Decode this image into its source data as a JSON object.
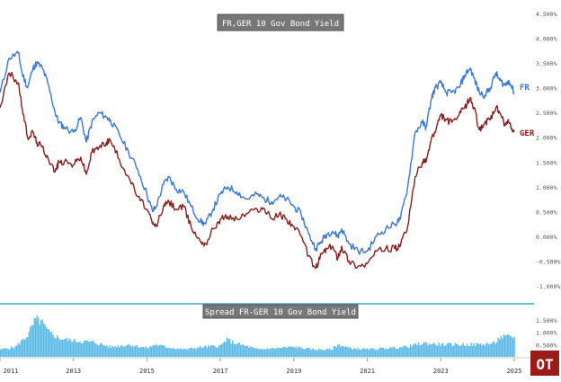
{
  "chart_data": [
    {
      "type": "line",
      "title": "FR,GER 10 Gov Bond Yield",
      "ylim": [
        -1.0,
        4.5
      ],
      "yticks": [
        "4.500%",
        "4.000%",
        "3.500%",
        "3.000%",
        "2.500%",
        "2.000%",
        "1.500%",
        "1.000%",
        "0.500%",
        "0.000%",
        "-0.500%",
        "-1.000%"
      ],
      "ytick_values": [
        4.5,
        4.0,
        3.5,
        3.0,
        2.5,
        2.0,
        1.5,
        1.0,
        0.5,
        0.0,
        -0.5,
        -1.0
      ],
      "xlim": [
        2011,
        2025
      ],
      "legend_placement": "right, at line ends",
      "series": [
        {
          "name": "FR",
          "color": "#3a77d6",
          "x": [
            2011.0,
            2011.25,
            2011.5,
            2011.6,
            2011.75,
            2011.9,
            2012.0,
            2012.15,
            2012.3,
            2012.5,
            2012.6,
            2012.75,
            2013.0,
            2013.2,
            2013.35,
            2013.5,
            2013.7,
            2013.9,
            2014.0,
            2014.25,
            2014.5,
            2014.75,
            2015.0,
            2015.15,
            2015.25,
            2015.45,
            2015.6,
            2015.8,
            2016.0,
            2016.2,
            2016.45,
            2016.6,
            2016.8,
            2017.0,
            2017.2,
            2017.45,
            2017.7,
            2018.0,
            2018.2,
            2018.4,
            2018.6,
            2018.8,
            2019.0,
            2019.2,
            2019.4,
            2019.6,
            2019.75,
            2019.9,
            2020.05,
            2020.2,
            2020.3,
            2020.5,
            2020.75,
            2021.0,
            2021.25,
            2021.5,
            2021.75,
            2021.9,
            2022.1,
            2022.3,
            2022.5,
            2022.6,
            2022.75,
            2022.85,
            2023.0,
            2023.15,
            2023.3,
            2023.5,
            2023.65,
            2023.8,
            2023.9,
            2024.05,
            2024.2,
            2024.35,
            2024.5,
            2024.6,
            2024.75,
            2024.85,
            2025.0
          ],
          "values": [
            2.9,
            3.6,
            3.7,
            3.3,
            3.0,
            3.4,
            3.5,
            3.4,
            3.1,
            2.5,
            2.3,
            2.2,
            2.1,
            2.4,
            1.9,
            2.3,
            2.5,
            2.4,
            2.35,
            2.05,
            1.7,
            1.35,
            0.85,
            0.5,
            0.6,
            1.05,
            1.2,
            0.95,
            0.9,
            0.6,
            0.3,
            0.25,
            0.55,
            0.85,
            1.0,
            0.9,
            0.75,
            0.85,
            0.75,
            0.7,
            0.8,
            0.75,
            0.6,
            0.45,
            0.05,
            -0.25,
            -0.1,
            0.05,
            0.1,
            0.0,
            0.15,
            -0.15,
            -0.3,
            -0.3,
            0.0,
            0.15,
            0.25,
            0.35,
            1.0,
            2.1,
            2.3,
            2.2,
            2.8,
            3.0,
            3.1,
            2.9,
            2.9,
            3.0,
            3.25,
            3.4,
            3.2,
            2.9,
            2.85,
            3.0,
            3.3,
            3.15,
            3.05,
            3.15,
            2.9
          ]
        },
        {
          "name": "GER",
          "color": "#8b1d1d",
          "x": [
            2011.0,
            2011.25,
            2011.5,
            2011.6,
            2011.75,
            2011.9,
            2012.0,
            2012.15,
            2012.3,
            2012.5,
            2012.6,
            2012.75,
            2013.0,
            2013.2,
            2013.35,
            2013.5,
            2013.7,
            2013.9,
            2014.0,
            2014.25,
            2014.5,
            2014.75,
            2015.0,
            2015.15,
            2015.25,
            2015.45,
            2015.6,
            2015.8,
            2016.0,
            2016.2,
            2016.45,
            2016.6,
            2016.8,
            2017.0,
            2017.2,
            2017.45,
            2017.7,
            2018.0,
            2018.2,
            2018.4,
            2018.6,
            2018.8,
            2019.0,
            2019.2,
            2019.4,
            2019.6,
            2019.75,
            2019.9,
            2020.05,
            2020.2,
            2020.3,
            2020.5,
            2020.75,
            2021.0,
            2021.25,
            2021.5,
            2021.75,
            2021.9,
            2022.1,
            2022.3,
            2022.5,
            2022.6,
            2022.75,
            2022.85,
            2023.0,
            2023.15,
            2023.3,
            2023.5,
            2023.65,
            2023.8,
            2023.9,
            2024.05,
            2024.2,
            2024.35,
            2024.5,
            2024.6,
            2024.75,
            2024.85,
            2025.0
          ],
          "values": [
            2.6,
            3.3,
            3.1,
            2.6,
            2.0,
            2.1,
            1.9,
            1.8,
            1.6,
            1.3,
            1.5,
            1.5,
            1.45,
            1.6,
            1.25,
            1.7,
            1.8,
            1.9,
            1.95,
            1.55,
            1.2,
            0.8,
            0.55,
            0.25,
            0.2,
            0.6,
            0.7,
            0.55,
            0.6,
            0.2,
            -0.1,
            -0.15,
            0.15,
            0.35,
            0.4,
            0.35,
            0.45,
            0.55,
            0.55,
            0.35,
            0.45,
            0.35,
            0.2,
            0.0,
            -0.4,
            -0.65,
            -0.35,
            -0.25,
            -0.2,
            -0.45,
            -0.2,
            -0.5,
            -0.6,
            -0.55,
            -0.3,
            -0.25,
            -0.25,
            -0.2,
            0.2,
            1.2,
            1.5,
            1.5,
            2.0,
            2.1,
            2.45,
            2.35,
            2.3,
            2.45,
            2.6,
            2.8,
            2.6,
            2.15,
            2.3,
            2.35,
            2.6,
            2.5,
            2.25,
            2.3,
            2.1
          ]
        }
      ],
      "label_fr": "FR",
      "label_ger": "GER"
    },
    {
      "type": "bar",
      "title": "Spread FR-GER 10 Gov Bond Yield",
      "ylim": [
        0.0,
        1.75
      ],
      "yticks": [
        "1.500%",
        "1.000%",
        "0.500%"
      ],
      "ytick_values": [
        1.5,
        1.0,
        0.5
      ],
      "color": "#5ab9e6",
      "x": [
        2011.0,
        2011.4,
        2011.75,
        2011.95,
        2012.1,
        2012.3,
        2012.6,
        2013.0,
        2013.5,
        2014.0,
        2014.5,
        2015.0,
        2015.2,
        2015.5,
        2016.0,
        2016.5,
        2017.0,
        2017.15,
        2017.4,
        2018.0,
        2018.5,
        2019.0,
        2019.5,
        2020.0,
        2020.2,
        2020.5,
        2021.0,
        2021.5,
        2022.0,
        2022.5,
        2023.0,
        2023.5,
        2024.0,
        2024.45,
        2024.6,
        2024.9,
        2025.0
      ],
      "values": [
        0.3,
        0.4,
        0.9,
        1.5,
        1.45,
        1.0,
        0.75,
        0.65,
        0.6,
        0.4,
        0.5,
        0.35,
        0.5,
        0.4,
        0.3,
        0.4,
        0.45,
        0.7,
        0.55,
        0.3,
        0.35,
        0.4,
        0.3,
        0.3,
        0.5,
        0.35,
        0.3,
        0.35,
        0.4,
        0.55,
        0.5,
        0.5,
        0.5,
        0.55,
        0.8,
        0.8,
        0.8
      ]
    }
  ],
  "x_axis": {
    "ticks": [
      "2011",
      "2013",
      "2015",
      "2017",
      "2019",
      "2021",
      "2023",
      "2025"
    ],
    "tick_values": [
      2011,
      2013,
      2015,
      2017,
      2019,
      2021,
      2023,
      2025
    ]
  },
  "logo": {
    "text": "OT",
    "bg": "#9b1b1b"
  },
  "colors": {
    "fr": "#3a77d6",
    "ger": "#8b1d1d",
    "spread": "#5ab9e6",
    "separator": "#3aa7d8",
    "title_bg": "#777777"
  }
}
